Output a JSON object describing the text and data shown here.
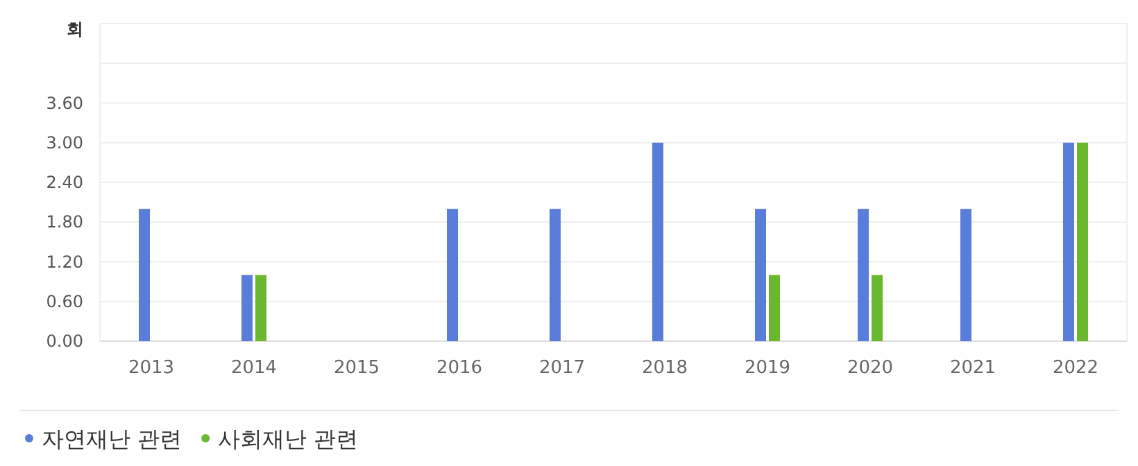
{
  "chart_data": {
    "type": "bar",
    "ylabel": "회",
    "categories": [
      "2013",
      "2014",
      "2015",
      "2016",
      "2017",
      "2018",
      "2019",
      "2020",
      "2021",
      "2022"
    ],
    "series": [
      {
        "name": "자연재난 관련",
        "color": "#5a7ddc",
        "values": [
          2,
          1,
          0,
          2,
          2,
          3,
          2,
          2,
          2,
          3
        ]
      },
      {
        "name": "사회재난 관련",
        "color": "#6ab82e",
        "values": [
          0,
          1,
          0,
          0,
          0,
          0,
          1,
          1,
          0,
          3
        ]
      }
    ],
    "ylim": [
      0,
      4.8
    ],
    "yticks": [
      {
        "value": 0,
        "label": "0.00"
      },
      {
        "value": 0.6,
        "label": "0.60"
      },
      {
        "value": 1.2,
        "label": "1.20"
      },
      {
        "value": 1.8,
        "label": "1.80"
      },
      {
        "value": 2.4,
        "label": "2.40"
      },
      {
        "value": 3,
        "label": "3.00"
      },
      {
        "value": 3.6,
        "label": "3.60"
      },
      {
        "value": 4.2,
        "label": null
      },
      {
        "value": 4.8,
        "label": null
      }
    ],
    "grid": "y",
    "legend": "bottom left"
  }
}
